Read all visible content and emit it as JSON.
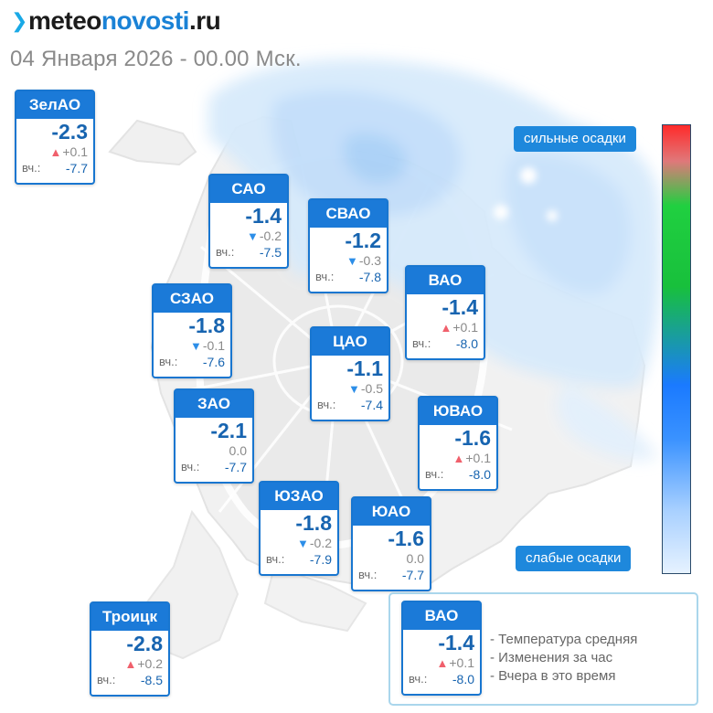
{
  "header": {
    "logo_part1": "meteo",
    "logo_part2": "novosti",
    "logo_part3": ".ru",
    "date_line": "04 Января 2026 - 00.00 Мск."
  },
  "yesterday_label": "вч.:",
  "districts": {
    "zelao": {
      "name": "ЗелАО",
      "temp": "-2.3",
      "change": "+0.1",
      "trend": "up",
      "yesterday": "-7.7"
    },
    "sao": {
      "name": "САО",
      "temp": "-1.4",
      "change": "-0.2",
      "trend": "down",
      "yesterday": "-7.5"
    },
    "svao": {
      "name": "СВАО",
      "temp": "-1.2",
      "change": "-0.3",
      "trend": "down",
      "yesterday": "-7.8"
    },
    "vao": {
      "name": "ВАО",
      "temp": "-1.4",
      "change": "+0.1",
      "trend": "up",
      "yesterday": "-8.0"
    },
    "szao": {
      "name": "СЗАО",
      "temp": "-1.8",
      "change": "-0.1",
      "trend": "down",
      "yesterday": "-7.6"
    },
    "cao": {
      "name": "ЦАО",
      "temp": "-1.1",
      "change": "-0.5",
      "trend": "down",
      "yesterday": "-7.4"
    },
    "zao": {
      "name": "ЗАО",
      "temp": "-2.1",
      "change": "0.0",
      "trend": "none",
      "yesterday": "-7.7"
    },
    "uvao": {
      "name": "ЮВАО",
      "temp": "-1.6",
      "change": "+0.1",
      "trend": "up",
      "yesterday": "-8.0"
    },
    "uzao": {
      "name": "ЮЗАО",
      "temp": "-1.8",
      "change": "-0.2",
      "trend": "down",
      "yesterday": "-7.9"
    },
    "uao": {
      "name": "ЮАО",
      "temp": "-1.6",
      "change": "0.0",
      "trend": "none",
      "yesterday": "-7.7"
    },
    "troick": {
      "name": "Троицк",
      "temp": "-2.8",
      "change": "+0.2",
      "trend": "up",
      "yesterday": "-8.5"
    }
  },
  "scale": {
    "top_label": "сильные осадки",
    "bottom_label": "слабые осадки",
    "colors": [
      "#ff2a2a",
      "#20d040",
      "#1a7aff",
      "#e6f2ff"
    ]
  },
  "legend": {
    "example": {
      "name": "ВАО",
      "temp": "-1.4",
      "change": "+0.1",
      "trend": "up",
      "yesterday": "-8.0"
    },
    "lines": [
      "- Температура средняя",
      "- Изменения за час",
      "- Вчера в это время"
    ]
  },
  "colors": {
    "card_header": "#1b7ad8",
    "temp_text": "#1764b0",
    "arrow_up": "#f0606c",
    "arrow_down": "#2c8ee8",
    "precip": "#cfe6fa"
  }
}
